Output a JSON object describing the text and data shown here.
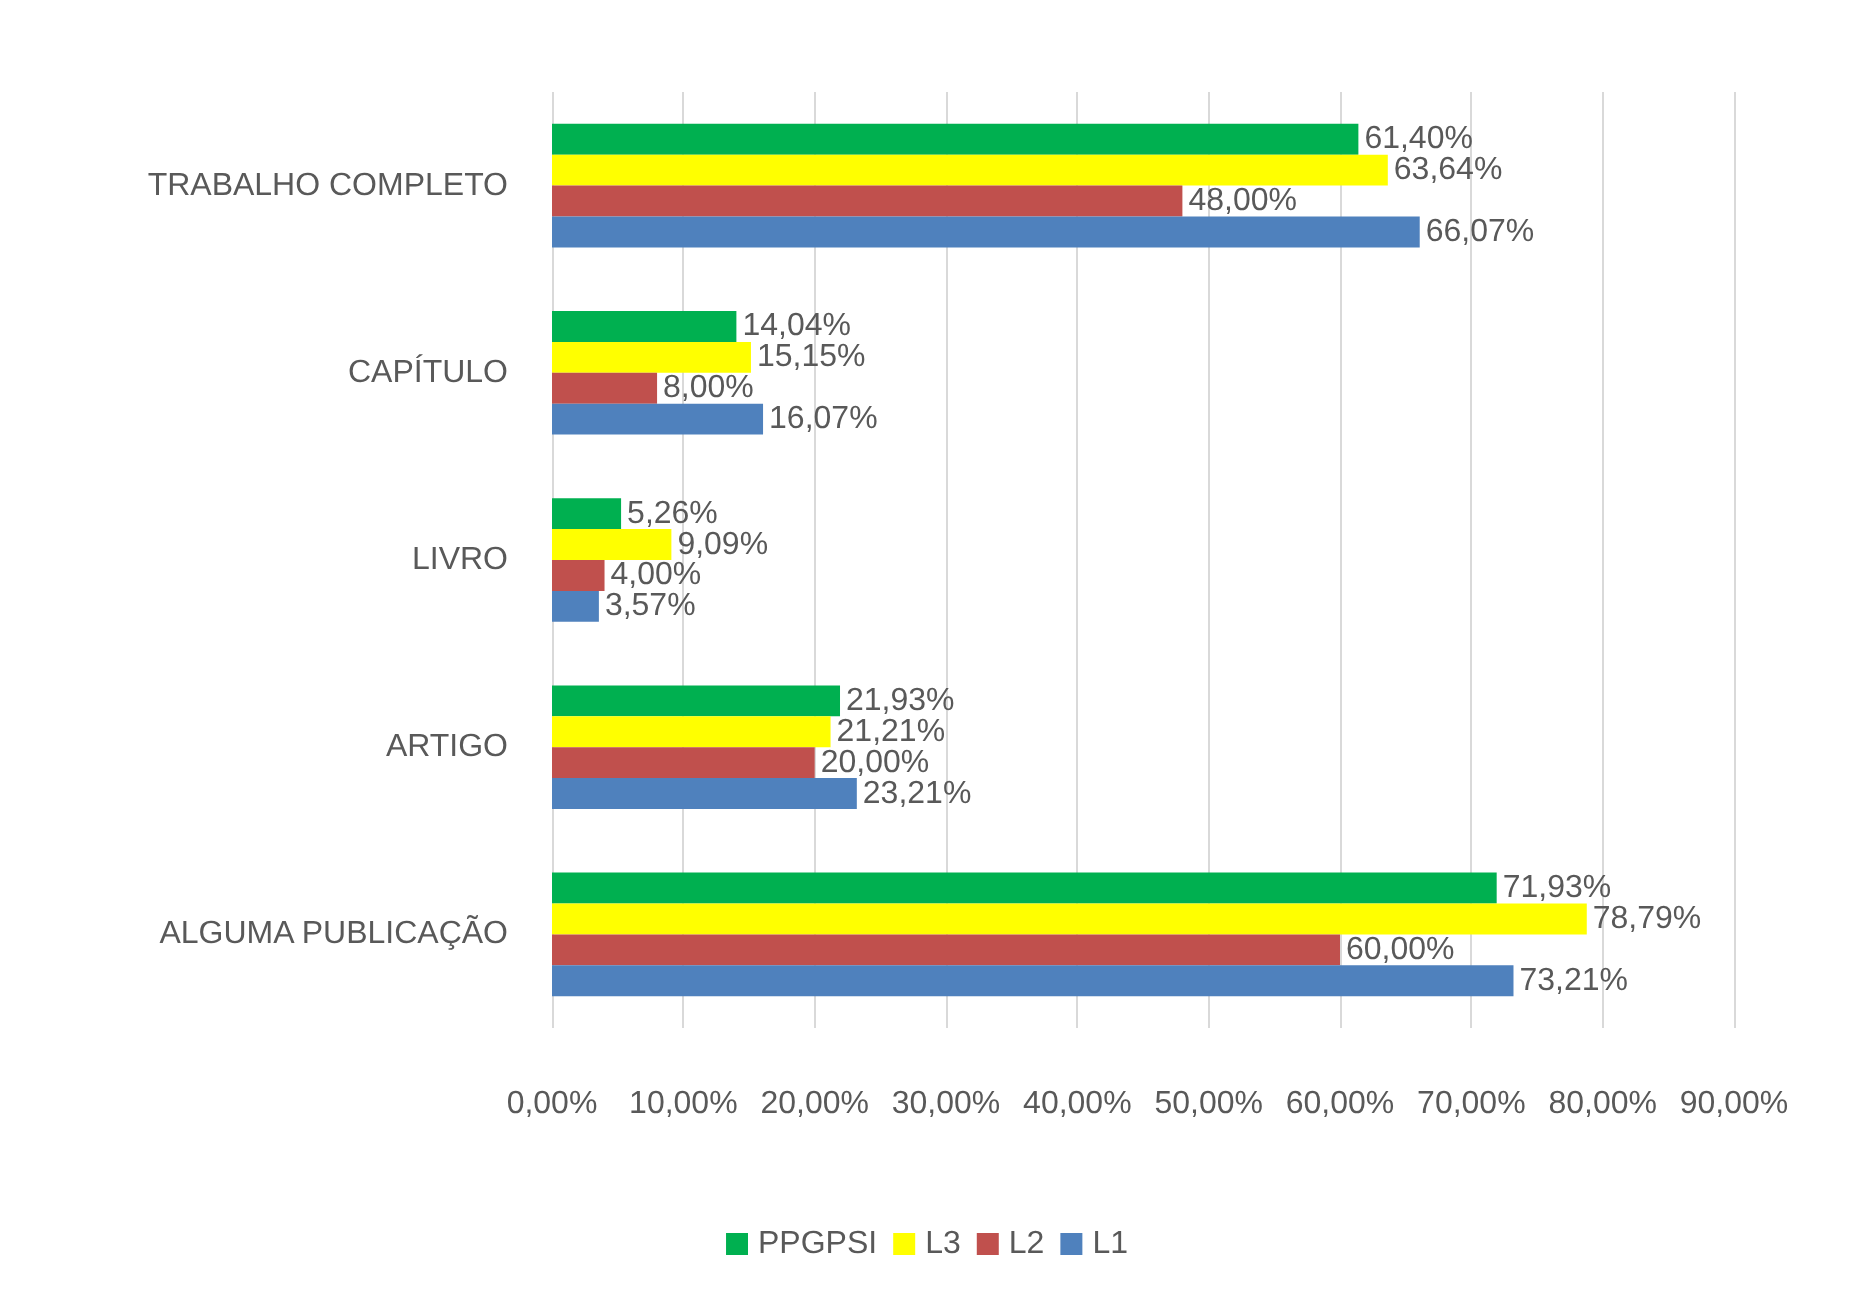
{
  "chart_data": {
    "type": "bar",
    "orientation": "horizontal",
    "categories": [
      "TRABALHO COMPLETO",
      "CAPÍTULO",
      "LIVRO",
      "ARTIGO",
      "ALGUMA PUBLICAÇÃO"
    ],
    "series": [
      {
        "name": "PPGPSI",
        "color": "#00b050",
        "values": [
          61.4,
          14.04,
          5.26,
          21.93,
          71.93
        ],
        "value_labels": [
          "61,40%",
          "14,04%",
          "5,26%",
          "21,93%",
          "71,93%"
        ]
      },
      {
        "name": "L3",
        "color": "#ffff00",
        "values": [
          63.64,
          15.15,
          9.09,
          21.21,
          78.79
        ],
        "value_labels": [
          "63,64%",
          "15,15%",
          "9,09%",
          "21,21%",
          "78,79%"
        ]
      },
      {
        "name": "L2",
        "color": "#c0504d",
        "values": [
          48.0,
          8.0,
          4.0,
          20.0,
          60.0
        ],
        "value_labels": [
          "48,00%",
          "8,00%",
          "4,00%",
          "20,00%",
          "60,00%"
        ]
      },
      {
        "name": "L1",
        "color": "#4f81bd",
        "values": [
          66.07,
          16.07,
          3.57,
          23.21,
          73.21
        ],
        "value_labels": [
          "66,07%",
          "16,07%",
          "3,57%",
          "23,21%",
          "73,21%"
        ]
      }
    ],
    "xlim": [
      0,
      90
    ],
    "xticks": [
      {
        "value": 0,
        "label": "0,00%"
      },
      {
        "value": 10,
        "label": "10,00%"
      },
      {
        "value": 20,
        "label": "20,00%"
      },
      {
        "value": 30,
        "label": "30,00%"
      },
      {
        "value": 40,
        "label": "40,00%"
      },
      {
        "value": 50,
        "label": "50,00%"
      },
      {
        "value": 60,
        "label": "60,00%"
      },
      {
        "value": 70,
        "label": "70,00%"
      },
      {
        "value": 80,
        "label": "80,00%"
      },
      {
        "value": 90,
        "label": "90,00%"
      }
    ],
    "grid": "x",
    "legend": "bottom"
  }
}
